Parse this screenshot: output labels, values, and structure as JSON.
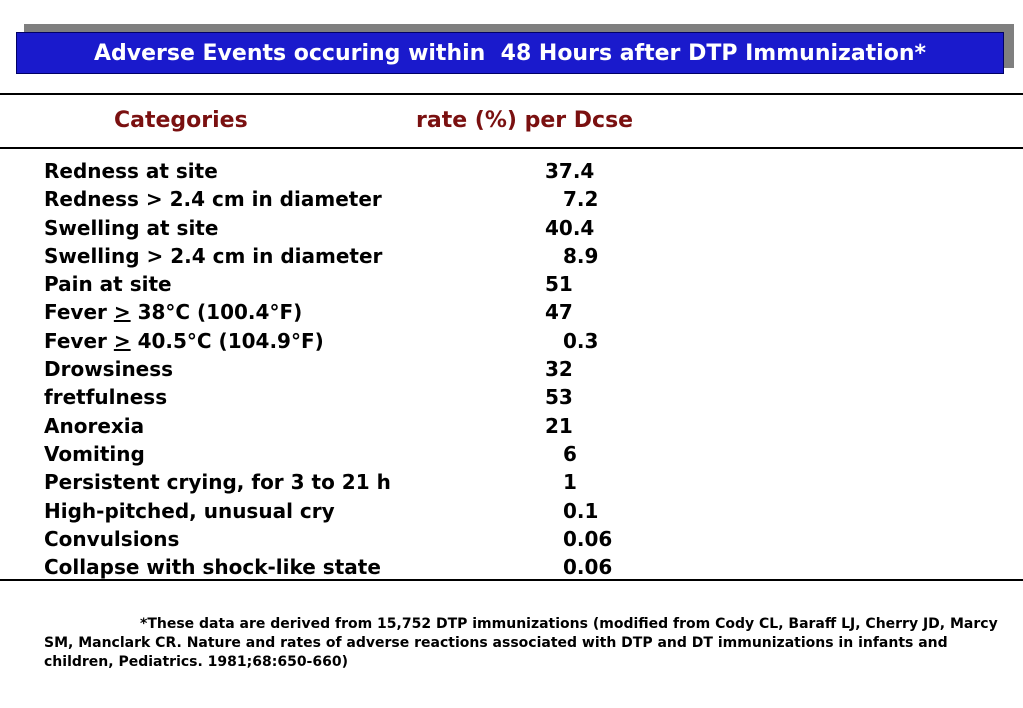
{
  "title": "Adverse Events occuring within  48 Hours after DTP Immunization*",
  "header": {
    "categories_label": "Categories",
    "rate_label": "rate (%) per Dcse"
  },
  "rows": [
    {
      "label": "Redness at site",
      "value": "37.4"
    },
    {
      "label": "Redness > 2.4 cm in diameter",
      "value": "7.2"
    },
    {
      "label": "Swelling at site",
      "value": "40.4"
    },
    {
      "label": "Swelling > 2.4 cm in diameter",
      "value": "8.9"
    },
    {
      "label": "Pain at site",
      "value": "51"
    },
    {
      "label_pre": "Fever ",
      "label_sym": ">",
      "label_post": " 38°C (100.4°F)",
      "value": "47"
    },
    {
      "label_pre": "Fever ",
      "label_sym": ">",
      "label_post": " 40.5°C (104.9°F)",
      "value": "0.3"
    },
    {
      "label": "Drowsiness",
      "value": "32"
    },
    {
      "label": "fretfulness",
      "value": "53"
    },
    {
      "label": "Anorexia",
      "value": "21"
    },
    {
      "label": "Vomiting",
      "value": "6"
    },
    {
      "label": "Persistent crying, for 3 to 21 h",
      "value": "1"
    },
    {
      "label": "High-pitched, unusual cry",
      "value": "0.1"
    },
    {
      "label": "Convulsions",
      "value": "0.06"
    },
    {
      "label": "Collapse with shock-like state",
      "value": "0.06"
    }
  ],
  "footnote": "*These data are derived from 15,752 DTP immunizations (modified from Cody CL, Baraff LJ, Cherry JD, Marcy SM, Manclark CR.  Nature and rates of adverse reactions associated with DTP and DT immunizations in infants and children, Pediatrics. 1981;68:650-660)"
}
